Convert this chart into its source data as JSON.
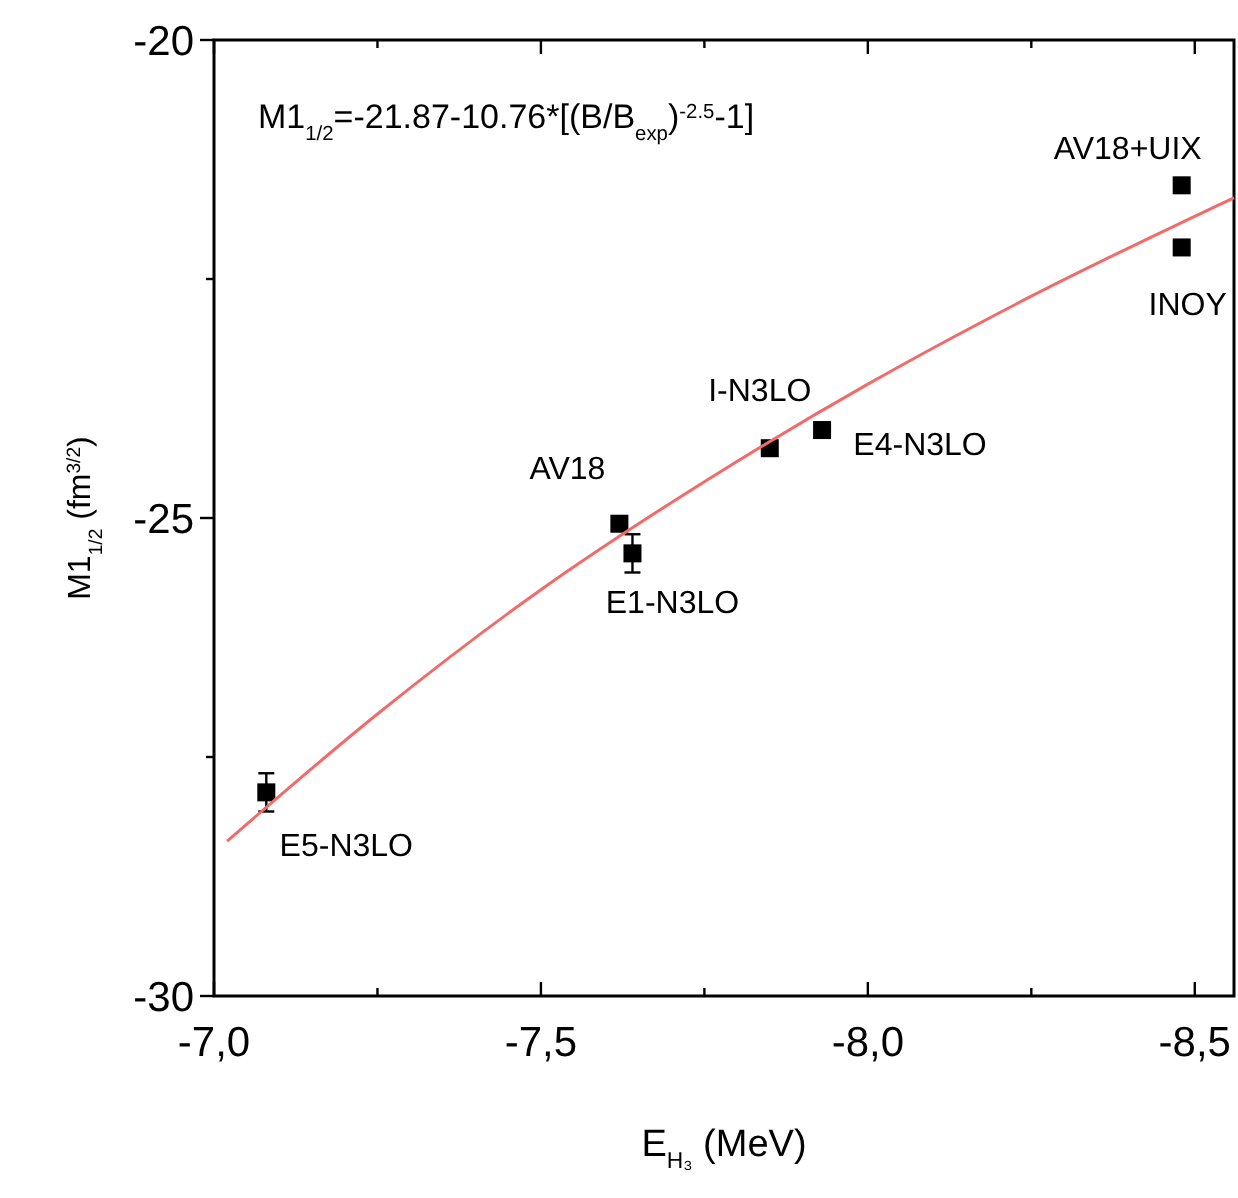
{
  "chart_data": {
    "type": "scatter",
    "xlabel": "E$_{H₃}$ (MeV)",
    "ylabel": "M1$_{1/2}$ (fm$^{3/2}$)",
    "xlim": [
      -7,
      -8.56
    ],
    "ylim": [
      -30,
      -20
    ],
    "xticks": [
      {
        "value": -7,
        "label": "-7,0"
      },
      {
        "value": -7.25,
        "label": null
      },
      {
        "value": -7.5,
        "label": "-7,5"
      },
      {
        "value": -7.75,
        "label": null
      },
      {
        "value": -8,
        "label": "-8,0"
      },
      {
        "value": -8.25,
        "label": null
      },
      {
        "value": -8.5,
        "label": "-8,5"
      }
    ],
    "yticks": [
      -30,
      {
        "value": -27.5,
        "label": null
      },
      -25,
      {
        "value": -22.5,
        "label": null
      },
      -20
    ],
    "grid": false,
    "series": [
      {
        "color": "#000000",
        "marker": "square",
        "x": [
          -8.48,
          -8.48,
          -7.85,
          -7.93,
          -7.62,
          -7.64,
          -7.08
        ],
        "values": [
          -21.52,
          -22.17,
          -24.27,
          -24.08,
          -25.06,
          -25.37,
          -27.87
        ],
        "errors": [
          null,
          null,
          null,
          null,
          null,
          0.2,
          0.2
        ]
      },
      {
        "type": "line",
        "color": "#f26b6b",
        "marker": "none",
        "line_style": "solid",
        "x": [
          -7.02,
          -7.25,
          -7.5,
          -7.75,
          -8.0,
          -8.25,
          -8.56
        ],
        "values": [
          -28.38,
          -27.05,
          -25.75,
          -24.62,
          -23.6,
          -22.68,
          -21.65
        ]
      }
    ],
    "annotations": [
      "M1$_{1/2}$=-21.87-10.76*[(B/B$_{exp}$)$^{-2.5}$-1]",
      {
        "text": "AV18+UIX",
        "x": -8.48,
        "y": -21.52
      },
      {
        "text": "INOY",
        "x": -8.48,
        "y": -22.17
      },
      {
        "text": "I-N3LO",
        "x": -7.85,
        "y": -24.27
      },
      {
        "text": "E4-N3LO",
        "x": -7.93,
        "y": -24.08
      },
      {
        "text": "AV18",
        "x": -7.62,
        "y": -25.06
      },
      {
        "text": "E1-N3LO",
        "x": -7.64,
        "y": -25.37
      },
      {
        "text": "E5-N3LO",
        "x": -7.08,
        "y": -27.87
      }
    ]
  }
}
